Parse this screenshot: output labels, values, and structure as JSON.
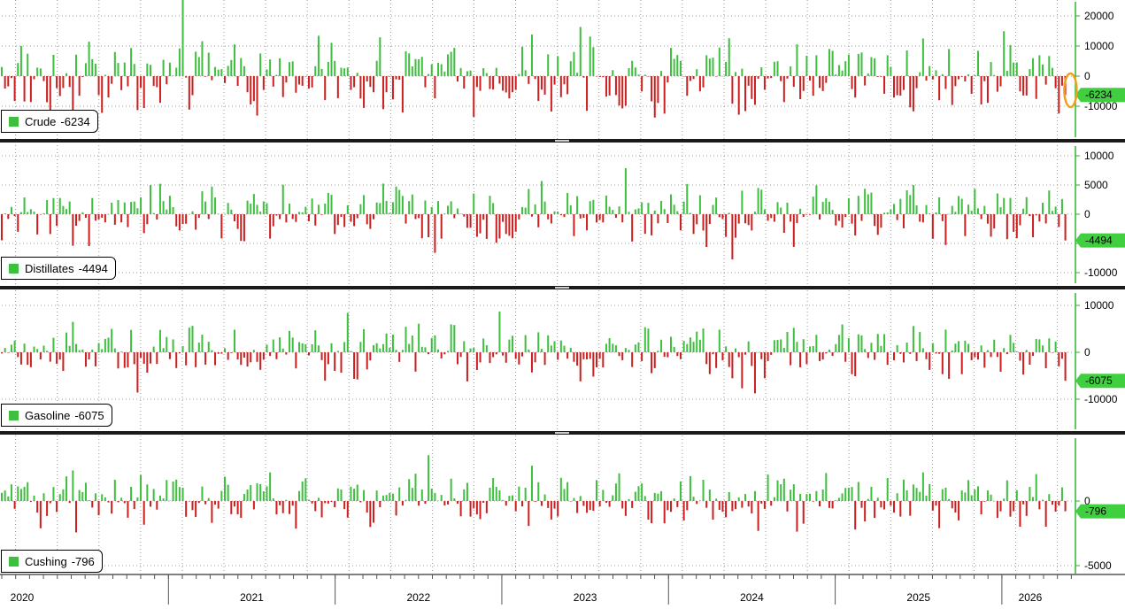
{
  "chart_data": {
    "type": "bar",
    "colors": {
      "positive": "#3fbf3f",
      "negative": "#cc1f1f",
      "axis": "#2fb52f",
      "tag_bg": "#3fcf3f",
      "highlight": "#f0a020"
    },
    "x": {
      "start": 2020.0,
      "end": 2026.42,
      "year_labels": [
        "2020",
        "2021",
        "2022",
        "2023",
        "2024",
        "2025",
        "2026"
      ]
    },
    "panels": [
      {
        "name": "Crude",
        "last_value": "-6234",
        "ylim": [
          -20000,
          20000
        ],
        "ticks": [
          20000,
          10000,
          0,
          -10000
        ],
        "tick_labels": [
          "20000",
          "10000",
          "0",
          "-10000"
        ],
        "amplitude": 12000
      },
      {
        "name": "Distillates",
        "last_value": "-4494",
        "ylim": [
          -10000,
          10000
        ],
        "ticks": [
          10000,
          5000,
          0,
          -5000,
          -10000
        ],
        "tick_labels": [
          "10000",
          "5000",
          "0",
          "-5000",
          "-10000"
        ],
        "amplitude": 4800
      },
      {
        "name": "Gasoline",
        "last_value": "-6075",
        "ylim": [
          -15000,
          12000
        ],
        "ticks": [
          10000,
          0,
          -10000
        ],
        "tick_labels": [
          "10000",
          "0",
          "-10000"
        ],
        "amplitude": 5500
      },
      {
        "name": "Cushing",
        "last_value": "-796",
        "ylim": [
          -6000,
          6000
        ],
        "ticks": [
          0,
          -5000
        ],
        "tick_labels": [
          "0",
          "-5000"
        ],
        "amplitude": 2000
      }
    ]
  }
}
